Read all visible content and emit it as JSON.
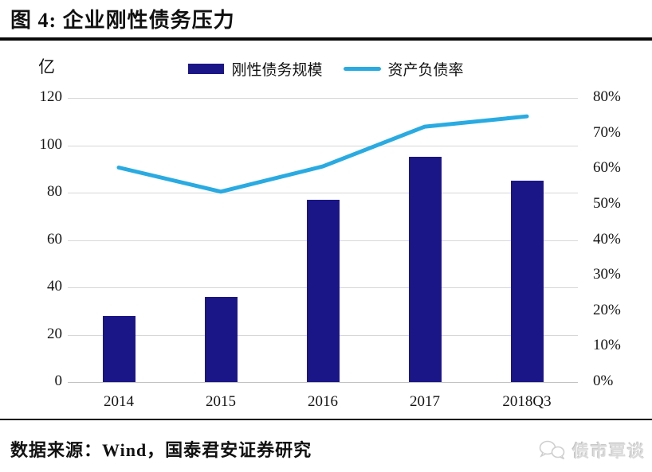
{
  "page": {
    "title": "图 4: 企业刚性债务压力",
    "source_line": "数据来源：Wind，国泰君安证券研究",
    "logo": {
      "text": "债市覃谈",
      "icon": "wechat-bubbles-icon",
      "color": "#cccccc"
    }
  },
  "chart_data": {
    "type": "bar",
    "subtype": "combo-bar-line-dual-axis",
    "categories": [
      "2014",
      "2015",
      "2016",
      "2017",
      "2018Q3"
    ],
    "series": [
      {
        "name": "刚性债务规模",
        "type": "bar",
        "axis": "left",
        "color": "#1b1688",
        "values": [
          28,
          36,
          77,
          95,
          85
        ]
      },
      {
        "name": "资产负债率",
        "type": "line",
        "axis": "right",
        "color": "#29abe2",
        "values": [
          60.4,
          53.6,
          60.7,
          71.9,
          74.8
        ]
      }
    ],
    "title": "企业刚性债务压力",
    "xlabel": "",
    "ylabel_left": "亿",
    "left_axis": {
      "unit_label": "亿",
      "min": 0,
      "max": 120,
      "step": 20,
      "tick_labels": [
        "120",
        "100",
        "80",
        "60",
        "40",
        "20",
        "0"
      ]
    },
    "right_axis": {
      "min": 0,
      "max": 80,
      "step": 10,
      "unit": "%",
      "tick_labels": [
        "80%",
        "70%",
        "60%",
        "50%",
        "40%",
        "30%",
        "20%",
        "10%",
        "0%"
      ]
    },
    "grid": true,
    "legend_position": "top-center"
  }
}
